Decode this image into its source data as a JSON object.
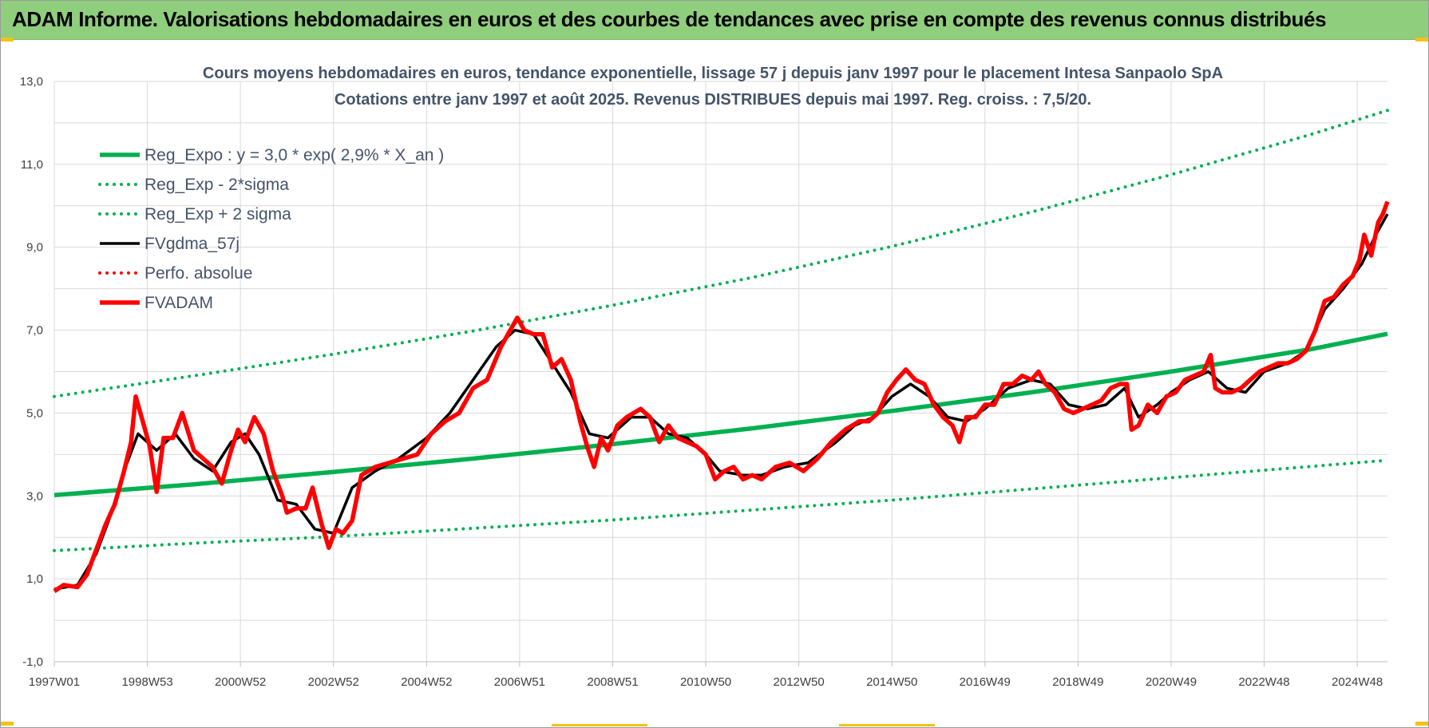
{
  "banner": {
    "title": "ADAM Informe. Valorisations hebdomadaires en euros et des courbes de tendances avec prise en compte des revenus connus distribués"
  },
  "colors": {
    "banner_bg": "#8fce7c",
    "reg_expo": "#00b050",
    "sigma_bands": "#00b050",
    "fvgdma": "#000000",
    "perfo": "#ff0000",
    "fvadam": "#ff0000",
    "grid": "#d9d9d9"
  },
  "chart_data": {
    "type": "line",
    "title": [
      "Cours moyens hebdomadaires en euros, tendance exponentielle, lissage 57 j depuis janv 1997  pour le placement Intesa Sanpaolo SpA",
      "Cotations entre janv 1997 et août 2025. Revenus DISTRIBUES depuis mai 1997. Reg. croiss. : 7,5/20."
    ],
    "xlabel": "",
    "ylabel": "",
    "ylim": [
      -1,
      13
    ],
    "yticks": [
      "-1,0",
      "1,0",
      "3,0",
      "5,0",
      "7,0",
      "9,0",
      "11,0",
      "13,0"
    ],
    "x_range_years": [
      1997.0,
      2025.65
    ],
    "xticks": [
      {
        "label": "1997W01",
        "year": 1997.0
      },
      {
        "label": "1998W53",
        "year": 1999.0
      },
      {
        "label": "2000W52",
        "year": 2001.0
      },
      {
        "label": "2002W52",
        "year": 2003.0
      },
      {
        "label": "2004W52",
        "year": 2005.0
      },
      {
        "label": "2006W51",
        "year": 2007.0
      },
      {
        "label": "2008W51",
        "year": 2009.0
      },
      {
        "label": "2010W50",
        "year": 2011.0
      },
      {
        "label": "2012W50",
        "year": 2013.0
      },
      {
        "label": "2014W50",
        "year": 2015.0
      },
      {
        "label": "2016W49",
        "year": 2017.0
      },
      {
        "label": "2018W49",
        "year": 2019.0
      },
      {
        "label": "2020W49",
        "year": 2021.0
      },
      {
        "label": "2022W48",
        "year": 2023.0
      },
      {
        "label": "2024W48",
        "year": 2025.0
      }
    ],
    "grid": true,
    "legend_position": "top-left",
    "series": [
      {
        "name": "Reg_Expo : y = 3,0 * exp( 2,9% *  X_an )",
        "style": "solid-thick",
        "color": "#00b050",
        "points": [
          [
            1997.0,
            3.02
          ],
          [
            2000.0,
            3.28
          ],
          [
            2003.0,
            3.58
          ],
          [
            2006.0,
            3.9
          ],
          [
            2009.0,
            4.25
          ],
          [
            2012.0,
            4.63
          ],
          [
            2015.0,
            5.05
          ],
          [
            2018.0,
            5.5
          ],
          [
            2021.0,
            6.0
          ],
          [
            2024.0,
            6.54
          ],
          [
            2025.65,
            6.91
          ]
        ]
      },
      {
        "name": "Reg_Exp - 2*sigma",
        "style": "dotted",
        "color": "#00b050",
        "points": [
          [
            1997.0,
            1.68
          ],
          [
            2000.0,
            1.86
          ],
          [
            2003.0,
            2.02
          ],
          [
            2006.0,
            2.22
          ],
          [
            2009.0,
            2.42
          ],
          [
            2012.0,
            2.66
          ],
          [
            2015.0,
            2.9
          ],
          [
            2018.0,
            3.17
          ],
          [
            2021.0,
            3.44
          ],
          [
            2024.0,
            3.71
          ],
          [
            2025.65,
            3.86
          ]
        ]
      },
      {
        "name": "Reg_Exp + 2 sigma",
        "style": "dotted",
        "color": "#00b050",
        "points": [
          [
            1997.0,
            5.4
          ],
          [
            2000.0,
            5.9
          ],
          [
            2003.0,
            6.42
          ],
          [
            2006.0,
            6.98
          ],
          [
            2009.0,
            7.6
          ],
          [
            2012.0,
            8.27
          ],
          [
            2015.0,
            9.02
          ],
          [
            2018.0,
            9.85
          ],
          [
            2021.0,
            10.75
          ],
          [
            2024.0,
            11.72
          ],
          [
            2025.65,
            12.3
          ]
        ]
      },
      {
        "name": "FVgdma_57j",
        "style": "solid",
        "color": "#000000",
        "points": [
          [
            1997.0,
            0.75
          ],
          [
            1997.5,
            0.85
          ],
          [
            1997.9,
            1.6
          ],
          [
            1998.2,
            2.5
          ],
          [
            1998.5,
            3.6
          ],
          [
            1998.8,
            4.5
          ],
          [
            1999.2,
            4.1
          ],
          [
            1999.6,
            4.5
          ],
          [
            2000.0,
            3.9
          ],
          [
            2000.4,
            3.6
          ],
          [
            2000.8,
            4.3
          ],
          [
            2001.1,
            4.5
          ],
          [
            2001.4,
            4.0
          ],
          [
            2001.8,
            2.9
          ],
          [
            2002.2,
            2.8
          ],
          [
            2002.6,
            2.2
          ],
          [
            2003.0,
            2.1
          ],
          [
            2003.4,
            3.2
          ],
          [
            2003.9,
            3.6
          ],
          [
            2004.4,
            3.9
          ],
          [
            2005.0,
            4.4
          ],
          [
            2005.5,
            5.0
          ],
          [
            2006.0,
            5.8
          ],
          [
            2006.5,
            6.6
          ],
          [
            2006.9,
            7.0
          ],
          [
            2007.3,
            6.9
          ],
          [
            2007.7,
            6.2
          ],
          [
            2008.1,
            5.5
          ],
          [
            2008.5,
            4.5
          ],
          [
            2008.9,
            4.4
          ],
          [
            2009.4,
            4.9
          ],
          [
            2009.8,
            4.9
          ],
          [
            2010.2,
            4.5
          ],
          [
            2010.6,
            4.4
          ],
          [
            2011.0,
            4.0
          ],
          [
            2011.3,
            3.6
          ],
          [
            2011.8,
            3.5
          ],
          [
            2012.2,
            3.5
          ],
          [
            2012.7,
            3.7
          ],
          [
            2013.2,
            3.8
          ],
          [
            2013.8,
            4.3
          ],
          [
            2014.2,
            4.7
          ],
          [
            2014.6,
            4.9
          ],
          [
            2015.0,
            5.4
          ],
          [
            2015.4,
            5.7
          ],
          [
            2015.8,
            5.4
          ],
          [
            2016.2,
            4.9
          ],
          [
            2016.6,
            4.8
          ],
          [
            2017.0,
            5.1
          ],
          [
            2017.5,
            5.6
          ],
          [
            2018.0,
            5.8
          ],
          [
            2018.4,
            5.7
          ],
          [
            2018.8,
            5.2
          ],
          [
            2019.2,
            5.1
          ],
          [
            2019.6,
            5.2
          ],
          [
            2020.0,
            5.6
          ],
          [
            2020.3,
            4.9
          ],
          [
            2020.7,
            5.2
          ],
          [
            2021.0,
            5.5
          ],
          [
            2021.4,
            5.8
          ],
          [
            2021.8,
            6.0
          ],
          [
            2022.2,
            5.6
          ],
          [
            2022.6,
            5.5
          ],
          [
            2023.0,
            6.0
          ],
          [
            2023.5,
            6.2
          ],
          [
            2023.9,
            6.5
          ],
          [
            2024.3,
            7.5
          ],
          [
            2024.7,
            8.0
          ],
          [
            2025.1,
            8.6
          ],
          [
            2025.4,
            9.3
          ],
          [
            2025.65,
            9.8
          ]
        ]
      },
      {
        "name": "Perfo. absolue",
        "style": "dotted",
        "color": "#ff0000",
        "points": []
      },
      {
        "name": "FVADAM",
        "style": "solid-thick",
        "color": "#ff0000",
        "points": [
          [
            1997.0,
            0.7
          ],
          [
            1997.2,
            0.85
          ],
          [
            1997.5,
            0.8
          ],
          [
            1997.7,
            1.1
          ],
          [
            1997.9,
            1.7
          ],
          [
            1998.1,
            2.3
          ],
          [
            1998.3,
            2.8
          ],
          [
            1998.5,
            3.6
          ],
          [
            1998.65,
            4.3
          ],
          [
            1998.75,
            5.4
          ],
          [
            1998.9,
            4.8
          ],
          [
            1999.05,
            4.2
          ],
          [
            1999.2,
            3.1
          ],
          [
            1999.35,
            4.4
          ],
          [
            1999.55,
            4.4
          ],
          [
            1999.75,
            5.0
          ],
          [
            2000.0,
            4.1
          ],
          [
            2000.2,
            3.9
          ],
          [
            2000.4,
            3.7
          ],
          [
            2000.6,
            3.3
          ],
          [
            2000.8,
            4.1
          ],
          [
            2000.95,
            4.6
          ],
          [
            2001.1,
            4.3
          ],
          [
            2001.3,
            4.9
          ],
          [
            2001.5,
            4.5
          ],
          [
            2001.7,
            3.6
          ],
          [
            2001.9,
            3.0
          ],
          [
            2002.0,
            2.6
          ],
          [
            2002.2,
            2.7
          ],
          [
            2002.4,
            2.7
          ],
          [
            2002.55,
            3.2
          ],
          [
            2002.75,
            2.3
          ],
          [
            2002.9,
            1.75
          ],
          [
            2003.05,
            2.2
          ],
          [
            2003.2,
            2.1
          ],
          [
            2003.4,
            2.4
          ],
          [
            2003.6,
            3.5
          ],
          [
            2003.9,
            3.7
          ],
          [
            2004.2,
            3.8
          ],
          [
            2004.5,
            3.9
          ],
          [
            2004.8,
            4.0
          ],
          [
            2005.1,
            4.5
          ],
          [
            2005.4,
            4.8
          ],
          [
            2005.7,
            5.0
          ],
          [
            2006.0,
            5.6
          ],
          [
            2006.3,
            5.8
          ],
          [
            2006.6,
            6.6
          ],
          [
            2006.8,
            7.0
          ],
          [
            2006.95,
            7.3
          ],
          [
            2007.1,
            7.0
          ],
          [
            2007.3,
            6.9
          ],
          [
            2007.5,
            6.9
          ],
          [
            2007.7,
            6.1
          ],
          [
            2007.9,
            6.3
          ],
          [
            2008.1,
            5.8
          ],
          [
            2008.3,
            4.8
          ],
          [
            2008.45,
            4.2
          ],
          [
            2008.6,
            3.7
          ],
          [
            2008.75,
            4.4
          ],
          [
            2008.9,
            4.1
          ],
          [
            2009.1,
            4.7
          ],
          [
            2009.3,
            4.9
          ],
          [
            2009.6,
            5.1
          ],
          [
            2009.8,
            4.9
          ],
          [
            2010.0,
            4.3
          ],
          [
            2010.2,
            4.7
          ],
          [
            2010.4,
            4.4
          ],
          [
            2010.6,
            4.3
          ],
          [
            2010.8,
            4.2
          ],
          [
            2011.0,
            4.0
          ],
          [
            2011.2,
            3.4
          ],
          [
            2011.4,
            3.6
          ],
          [
            2011.6,
            3.7
          ],
          [
            2011.8,
            3.4
          ],
          [
            2012.0,
            3.5
          ],
          [
            2012.2,
            3.4
          ],
          [
            2012.5,
            3.7
          ],
          [
            2012.8,
            3.8
          ],
          [
            2013.1,
            3.6
          ],
          [
            2013.4,
            3.9
          ],
          [
            2013.7,
            4.3
          ],
          [
            2014.0,
            4.6
          ],
          [
            2014.3,
            4.8
          ],
          [
            2014.5,
            4.8
          ],
          [
            2014.7,
            5.0
          ],
          [
            2014.9,
            5.5
          ],
          [
            2015.1,
            5.8
          ],
          [
            2015.3,
            6.05
          ],
          [
            2015.5,
            5.8
          ],
          [
            2015.7,
            5.7
          ],
          [
            2015.9,
            5.2
          ],
          [
            2016.1,
            4.9
          ],
          [
            2016.3,
            4.7
          ],
          [
            2016.45,
            4.3
          ],
          [
            2016.6,
            4.9
          ],
          [
            2016.8,
            4.9
          ],
          [
            2017.0,
            5.2
          ],
          [
            2017.2,
            5.2
          ],
          [
            2017.4,
            5.7
          ],
          [
            2017.6,
            5.7
          ],
          [
            2017.8,
            5.9
          ],
          [
            2018.0,
            5.8
          ],
          [
            2018.15,
            6.0
          ],
          [
            2018.3,
            5.7
          ],
          [
            2018.5,
            5.5
          ],
          [
            2018.7,
            5.1
          ],
          [
            2018.9,
            5.0
          ],
          [
            2019.1,
            5.1
          ],
          [
            2019.3,
            5.2
          ],
          [
            2019.5,
            5.3
          ],
          [
            2019.7,
            5.6
          ],
          [
            2019.9,
            5.7
          ],
          [
            2020.05,
            5.7
          ],
          [
            2020.15,
            4.6
          ],
          [
            2020.3,
            4.7
          ],
          [
            2020.5,
            5.2
          ],
          [
            2020.7,
            5.0
          ],
          [
            2020.9,
            5.4
          ],
          [
            2021.1,
            5.5
          ],
          [
            2021.3,
            5.8
          ],
          [
            2021.5,
            5.9
          ],
          [
            2021.7,
            6.0
          ],
          [
            2021.85,
            6.4
          ],
          [
            2021.95,
            5.6
          ],
          [
            2022.1,
            5.5
          ],
          [
            2022.3,
            5.5
          ],
          [
            2022.5,
            5.6
          ],
          [
            2022.7,
            5.8
          ],
          [
            2022.9,
            6.0
          ],
          [
            2023.1,
            6.1
          ],
          [
            2023.3,
            6.2
          ],
          [
            2023.5,
            6.2
          ],
          [
            2023.7,
            6.3
          ],
          [
            2023.9,
            6.5
          ],
          [
            2024.1,
            7.0
          ],
          [
            2024.3,
            7.7
          ],
          [
            2024.5,
            7.8
          ],
          [
            2024.7,
            8.1
          ],
          [
            2024.9,
            8.3
          ],
          [
            2025.05,
            8.7
          ],
          [
            2025.15,
            9.3
          ],
          [
            2025.3,
            8.8
          ],
          [
            2025.45,
            9.6
          ],
          [
            2025.55,
            9.8
          ],
          [
            2025.65,
            10.1
          ]
        ]
      }
    ]
  }
}
